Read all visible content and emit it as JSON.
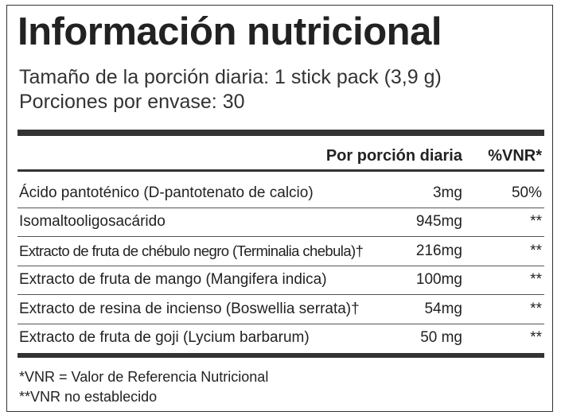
{
  "header": {
    "title": "Información nutricional",
    "serving": "Tamaño de la porción diaria: 1 stick pack (3,9 g)",
    "servings": "Porciones por envase: 30"
  },
  "table": {
    "columns": [
      "Por porción diaria",
      "%VNR*"
    ],
    "rows": [
      [
        "Ácido pantoténico (D-pantotenato de calcio)",
        "3mg",
        "50%"
      ],
      [
        "Isomaltooligosacárido",
        "945mg",
        "**"
      ],
      [
        "Extracto de fruta de chébulo negro (Terminalia chebula)†",
        "216mg",
        "**"
      ],
      [
        "Extracto de fruta de mango (Mangifera indica)",
        "100mg",
        "**"
      ],
      [
        "Extracto de resina de incienso (Boswellia serrata)†",
        "54mg",
        "**"
      ],
      [
        "Extracto de fruta de goji (Lycium barbarum)",
        "50 mg",
        "**"
      ]
    ]
  },
  "footnotes": [
    "*VNR = Valor de Referencia Nutricional",
    "**VNR no establecido"
  ]
}
